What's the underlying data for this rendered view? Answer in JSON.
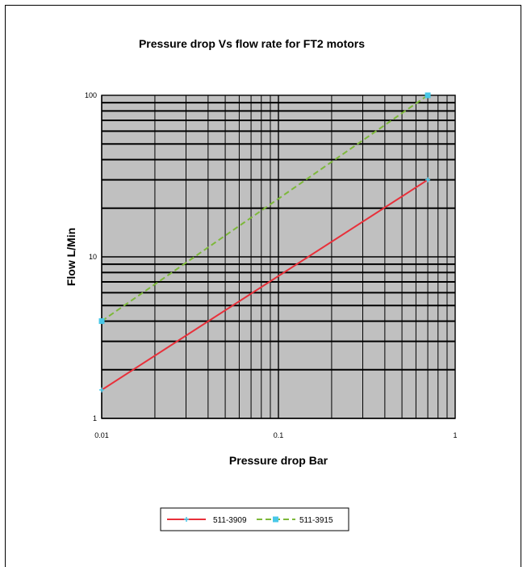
{
  "chart_data": {
    "type": "line",
    "title": "Pressure drop Vs flow rate for FT2 motors",
    "xlabel": "Pressure drop Bar",
    "ylabel": "Flow L/Min",
    "x_scale": "log",
    "y_scale": "log",
    "xlim": [
      0.01,
      1
    ],
    "ylim": [
      1,
      100
    ],
    "x_tick_labels": [
      "0.01",
      "0.1",
      "1"
    ],
    "y_tick_labels": [
      "1",
      "10",
      "100"
    ],
    "grid": true,
    "legend_position": "bottom",
    "series": [
      {
        "name": "511-3909",
        "color": "#e8303a",
        "line_style": "solid",
        "marker": "plus",
        "x": [
          0.01,
          0.7
        ],
        "y": [
          1.5,
          30
        ]
      },
      {
        "name": "511-3915",
        "color": "#7db83a",
        "line_style": "dashed",
        "marker_color": "#48c8e8",
        "marker": "square",
        "x": [
          0.01,
          0.7
        ],
        "y": [
          4,
          100
        ]
      }
    ]
  }
}
